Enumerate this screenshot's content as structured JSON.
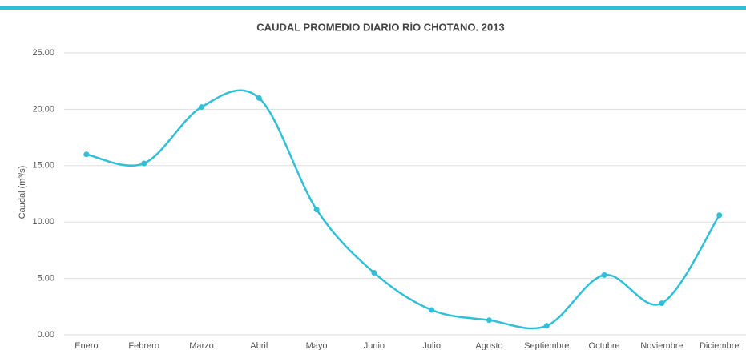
{
  "chart_data": {
    "type": "line",
    "title": "CAUDAL PROMEDIO DIARIO RÍO CHOTANO. 2013",
    "y_label": "Caudal (m³/s)",
    "categories": [
      "Enero",
      "Febrero",
      "Marzo",
      "Abril",
      "Mayo",
      "Junio",
      "Julio",
      "Agosto",
      "Septiembre",
      "Octubre",
      "Noviembre",
      "Diciembre"
    ],
    "values": [
      16.0,
      15.2,
      20.2,
      21.0,
      11.1,
      5.5,
      2.2,
      1.3,
      0.8,
      5.3,
      2.8,
      10.6
    ],
    "color": "#2fbfd6",
    "smooth": true,
    "ylim": [
      0,
      25
    ],
    "yticks": [
      {
        "value": 0,
        "label": "0.00"
      },
      {
        "value": 5,
        "label": "5.00"
      },
      {
        "value": 10,
        "label": "10.00"
      },
      {
        "value": 15,
        "label": "15.00"
      },
      {
        "value": 20,
        "label": "20.00"
      },
      {
        "value": 25,
        "label": "25.00"
      }
    ],
    "grid": true
  }
}
